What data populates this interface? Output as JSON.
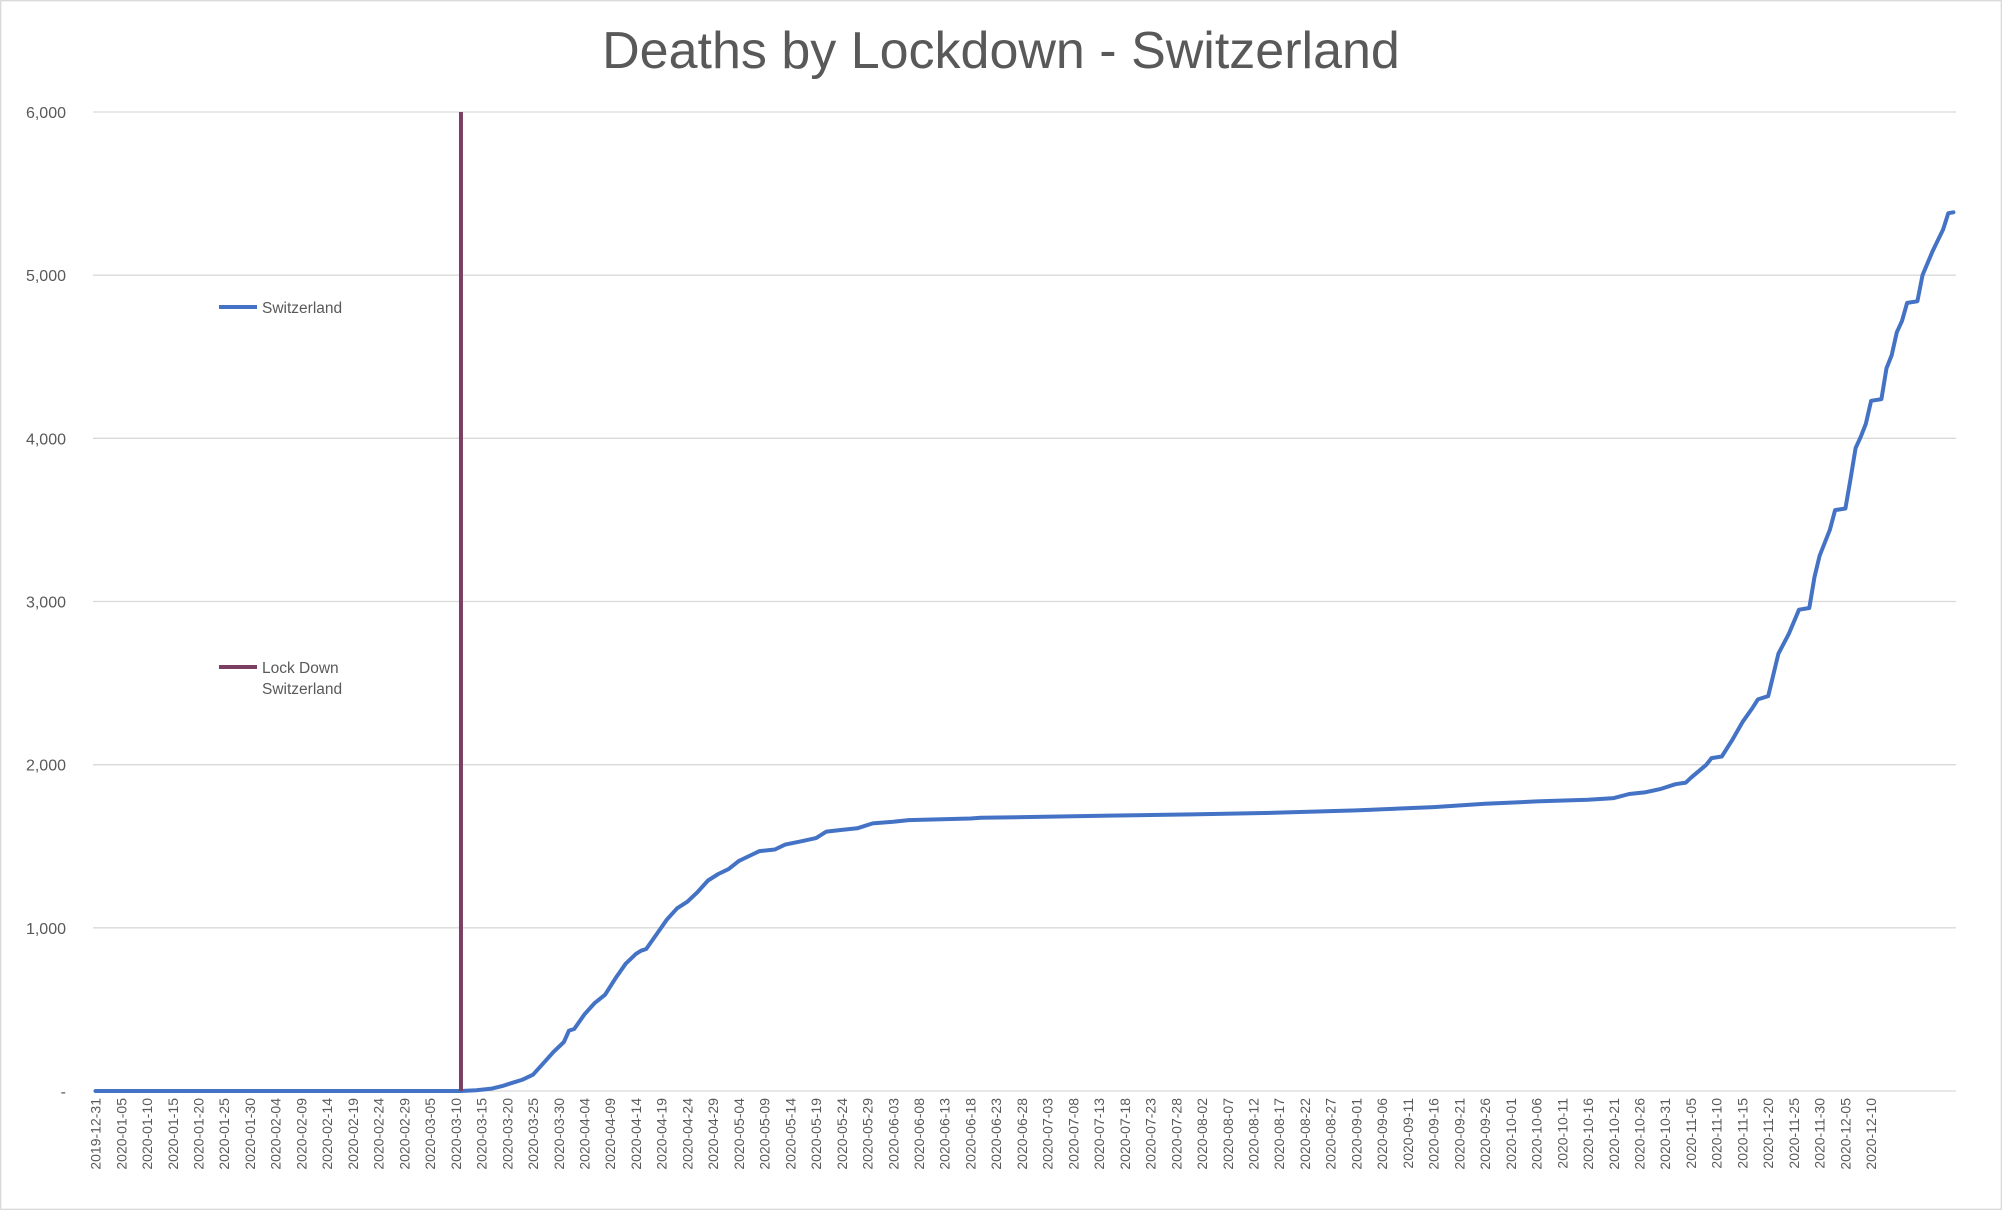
{
  "chart_data": {
    "type": "line",
    "title": "Deaths by Lockdown - Switzerland",
    "xlabel": "",
    "ylabel": "",
    "ylim": [
      0,
      6000
    ],
    "y_ticks": [
      {
        "value": 0,
        "label": "-"
      },
      {
        "value": 1000,
        "label": "1,000"
      },
      {
        "value": 2000,
        "label": "2,000"
      },
      {
        "value": 3000,
        "label": "3,000"
      },
      {
        "value": 4000,
        "label": "4,000"
      },
      {
        "value": 5000,
        "label": "5,000"
      },
      {
        "value": 6000,
        "label": "6,000"
      }
    ],
    "x_range": [
      "2019-12-31",
      "2020-12-13"
    ],
    "x_tick_labels": [
      "2019-12-31",
      "2020-01-05",
      "2020-01-10",
      "2020-01-15",
      "2020-01-20",
      "2020-01-25",
      "2020-01-30",
      "2020-02-04",
      "2020-02-09",
      "2020-02-14",
      "2020-02-19",
      "2020-02-24",
      "2020-02-29",
      "2020-03-05",
      "2020-03-10",
      "2020-03-15",
      "2020-03-20",
      "2020-03-25",
      "2020-03-30",
      "2020-04-04",
      "2020-04-09",
      "2020-04-14",
      "2020-04-19",
      "2020-04-24",
      "2020-04-29",
      "2020-05-04",
      "2020-05-09",
      "2020-05-14",
      "2020-05-19",
      "2020-05-24",
      "2020-05-29",
      "2020-06-03",
      "2020-06-08",
      "2020-06-13",
      "2020-06-18",
      "2020-06-23",
      "2020-06-28",
      "2020-07-03",
      "2020-07-08",
      "2020-07-13",
      "2020-07-18",
      "2020-07-23",
      "2020-07-28",
      "2020-08-02",
      "2020-08-07",
      "2020-08-12",
      "2020-08-17",
      "2020-08-22",
      "2020-08-27",
      "2020-09-01",
      "2020-09-06",
      "2020-09-11",
      "2020-09-16",
      "2020-09-21",
      "2020-09-26",
      "2020-10-01",
      "2020-10-06",
      "2020-10-11",
      "2020-10-16",
      "2020-10-21",
      "2020-10-26",
      "2020-10-31",
      "2020-11-05",
      "2020-11-10",
      "2020-11-15",
      "2020-11-20",
      "2020-11-25",
      "2020-11-30",
      "2020-12-05",
      "2020-12-10"
    ],
    "grid": true,
    "legend": {
      "placement": "left",
      "entries": [
        {
          "lines": [
            "Switzerland"
          ]
        },
        {
          "lines": [
            "Lock Down",
            "Switzerland"
          ]
        }
      ]
    },
    "series": [
      {
        "name": "Switzerland",
        "color": "#4472c4",
        "points": [
          [
            "2019-12-31",
            0
          ],
          [
            "2020-03-11",
            0
          ],
          [
            "2020-03-14",
            5
          ],
          [
            "2020-03-17",
            15
          ],
          [
            "2020-03-19",
            30
          ],
          [
            "2020-03-21",
            50
          ],
          [
            "2020-03-23",
            70
          ],
          [
            "2020-03-25",
            100
          ],
          [
            "2020-03-27",
            170
          ],
          [
            "2020-03-29",
            240
          ],
          [
            "2020-03-31",
            300
          ],
          [
            "2020-04-01",
            370
          ],
          [
            "2020-04-02",
            380
          ],
          [
            "2020-04-04",
            470
          ],
          [
            "2020-04-06",
            540
          ],
          [
            "2020-04-08",
            590
          ],
          [
            "2020-04-10",
            690
          ],
          [
            "2020-04-12",
            780
          ],
          [
            "2020-04-14",
            840
          ],
          [
            "2020-04-15",
            860
          ],
          [
            "2020-04-16",
            870
          ],
          [
            "2020-04-18",
            960
          ],
          [
            "2020-04-20",
            1050
          ],
          [
            "2020-04-22",
            1120
          ],
          [
            "2020-04-24",
            1160
          ],
          [
            "2020-04-26",
            1220
          ],
          [
            "2020-04-28",
            1290
          ],
          [
            "2020-04-30",
            1330
          ],
          [
            "2020-05-02",
            1360
          ],
          [
            "2020-05-04",
            1410
          ],
          [
            "2020-05-06",
            1440
          ],
          [
            "2020-05-08",
            1470
          ],
          [
            "2020-05-11",
            1480
          ],
          [
            "2020-05-13",
            1510
          ],
          [
            "2020-05-16",
            1530
          ],
          [
            "2020-05-19",
            1550
          ],
          [
            "2020-05-21",
            1590
          ],
          [
            "2020-05-24",
            1600
          ],
          [
            "2020-05-27",
            1610
          ],
          [
            "2020-05-30",
            1640
          ],
          [
            "2020-06-03",
            1650
          ],
          [
            "2020-06-06",
            1660
          ],
          [
            "2020-06-18",
            1670
          ],
          [
            "2020-06-20",
            1675
          ],
          [
            "2020-07-01",
            1680
          ],
          [
            "2020-07-15",
            1688
          ],
          [
            "2020-07-31",
            1695
          ],
          [
            "2020-08-16",
            1705
          ],
          [
            "2020-09-01",
            1720
          ],
          [
            "2020-09-16",
            1740
          ],
          [
            "2020-09-26",
            1760
          ],
          [
            "2020-10-06",
            1775
          ],
          [
            "2020-10-16",
            1785
          ],
          [
            "2020-10-21",
            1795
          ],
          [
            "2020-10-24",
            1820
          ],
          [
            "2020-10-27",
            1830
          ],
          [
            "2020-10-30",
            1850
          ],
          [
            "2020-11-02",
            1880
          ],
          [
            "2020-11-04",
            1890
          ],
          [
            "2020-11-05",
            1920
          ],
          [
            "2020-11-08",
            2000
          ],
          [
            "2020-11-09",
            2040
          ],
          [
            "2020-11-11",
            2050
          ],
          [
            "2020-11-13",
            2150
          ],
          [
            "2020-11-15",
            2260
          ],
          [
            "2020-11-17",
            2350
          ],
          [
            "2020-11-18",
            2400
          ],
          [
            "2020-11-20",
            2420
          ],
          [
            "2020-11-21",
            2550
          ],
          [
            "2020-11-22",
            2680
          ],
          [
            "2020-11-24",
            2800
          ],
          [
            "2020-11-26",
            2950
          ],
          [
            "2020-11-28",
            2960
          ],
          [
            "2020-11-29",
            3150
          ],
          [
            "2020-11-30",
            3280
          ],
          [
            "2020-12-02",
            3440
          ],
          [
            "2020-12-03",
            3560
          ],
          [
            "2020-12-05",
            3570
          ],
          [
            "2020-12-06",
            3750
          ],
          [
            "2020-12-07",
            3940
          ],
          [
            "2020-12-08",
            4010
          ],
          [
            "2020-12-09",
            4090
          ],
          [
            "2020-12-10",
            4230
          ],
          [
            "2020-12-12",
            4240
          ],
          [
            "2020-12-13",
            4430
          ],
          [
            "2020-12-14",
            4510
          ],
          [
            "2020-12-15",
            4650
          ],
          [
            "2020-12-16",
            4720
          ],
          [
            "2020-12-17",
            4830
          ],
          [
            "2020-12-19",
            4840
          ],
          [
            "2020-12-20",
            5000
          ],
          [
            "2020-12-22",
            5150
          ],
          [
            "2020-12-24",
            5280
          ],
          [
            "2020-12-25",
            5380
          ],
          [
            "2020-12-26",
            5385
          ]
        ]
      },
      {
        "name": "Lock Down Switzerland",
        "color": "#7b3f61",
        "type": "vertical-line",
        "x": "2020-03-11",
        "y_range": [
          0,
          6000
        ]
      }
    ]
  }
}
